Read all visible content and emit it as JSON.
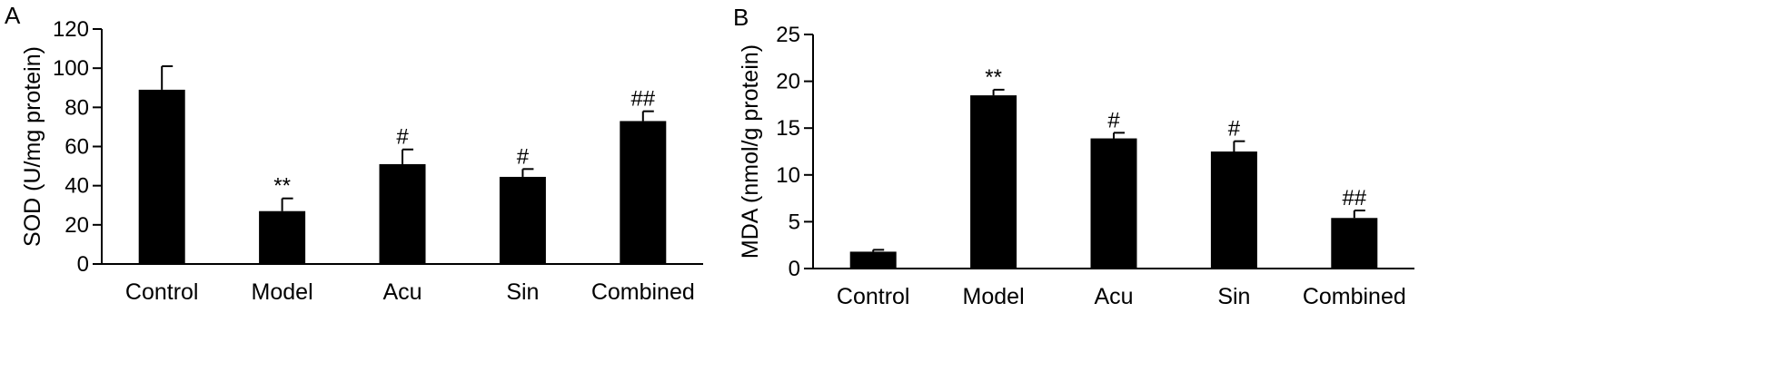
{
  "chart_data": [
    {
      "panel": "A",
      "type": "bar",
      "title": "",
      "xlabel": "",
      "ylabel": "SOD (U/mg protein)",
      "categories": [
        "Control",
        "Model",
        "Acu",
        "Sin",
        "Combined"
      ],
      "values": [
        89,
        27,
        51,
        44.5,
        73
      ],
      "error_upper": [
        101,
        33.5,
        58.5,
        48.5,
        78
      ],
      "significance": [
        "",
        "**",
        "#",
        "#",
        "##"
      ],
      "ylim": [
        0,
        120
      ],
      "yticks": [
        0,
        20,
        40,
        60,
        80,
        100,
        120
      ],
      "grid": false,
      "bar_color": "#000000"
    },
    {
      "panel": "B",
      "type": "bar",
      "title": "",
      "xlabel": "",
      "ylabel": "MDA (nmol/g protein)",
      "categories": [
        "Control",
        "Model",
        "Acu",
        "Sin",
        "Combined"
      ],
      "values": [
        1.8,
        18.5,
        13.9,
        12.5,
        5.4
      ],
      "error_upper": [
        2.0,
        19.1,
        14.5,
        13.6,
        6.2
      ],
      "significance": [
        "",
        "**",
        "#",
        "#",
        "##"
      ],
      "ylim": [
        0,
        25
      ],
      "yticks": [
        0,
        5,
        10,
        15,
        20,
        25
      ],
      "grid": false,
      "bar_color": "#000000"
    }
  ]
}
